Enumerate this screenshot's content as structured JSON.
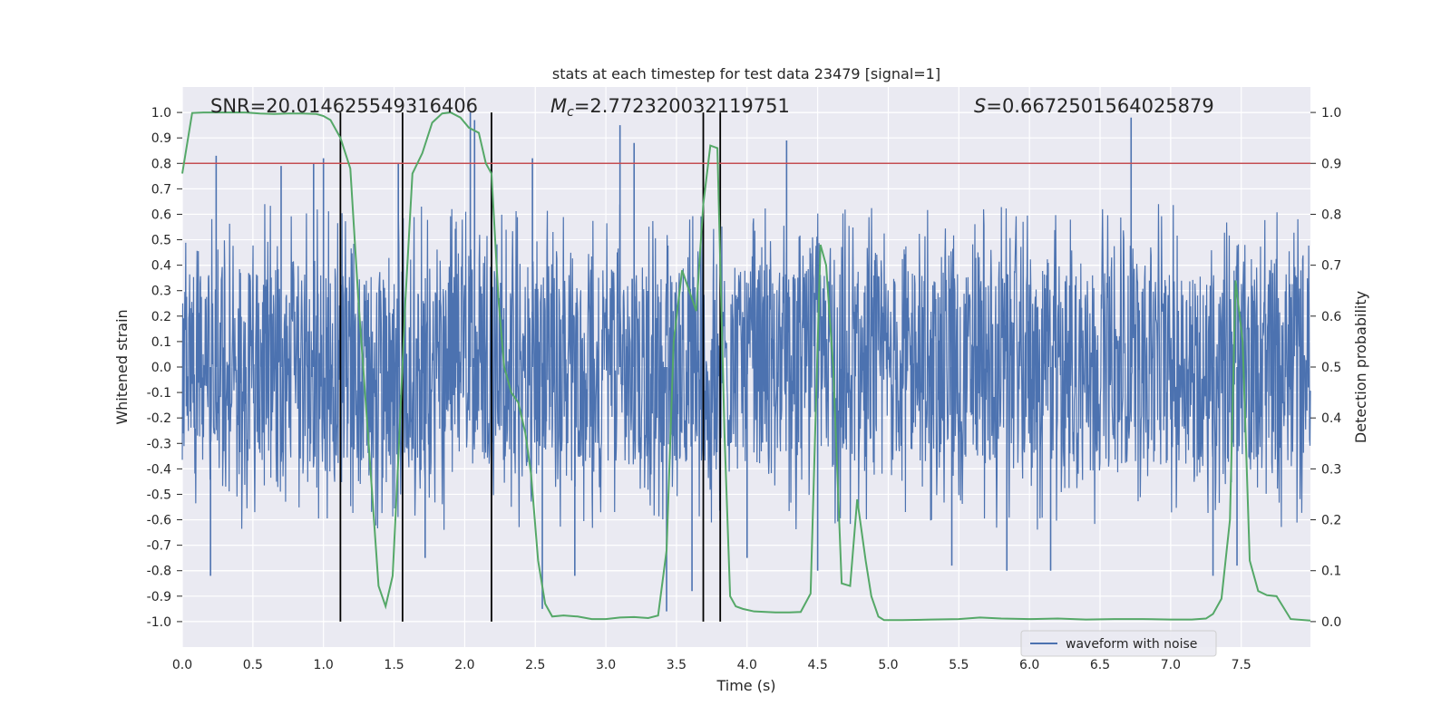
{
  "chart_data": {
    "type": "line",
    "title": "stats at each timestep for test data 23479 [signal=1]",
    "xlabel": "Time (s)",
    "ylabel": "Whitened strain",
    "y2label": "Detection probability",
    "xlim": [
      0.0,
      7.99
    ],
    "ylim": [
      -1.1,
      1.1
    ],
    "y2lim": [
      -0.05,
      1.05
    ],
    "x_ticks": [
      "0.0",
      "0.5",
      "1.0",
      "1.5",
      "2.0",
      "2.5",
      "3.0",
      "3.5",
      "4.0",
      "4.5",
      "5.0",
      "5.5",
      "6.0",
      "6.5",
      "7.0",
      "7.5"
    ],
    "y_ticks": [
      "1.0",
      "0.9",
      "0.8",
      "0.7",
      "0.6",
      "0.5",
      "0.4",
      "0.3",
      "0.2",
      "0.1",
      "0.0",
      "-0.1",
      "-0.2",
      "-0.3",
      "-0.4",
      "-0.5",
      "-0.6",
      "-0.7",
      "-0.8",
      "-0.9",
      "-1.0"
    ],
    "y2_ticks": [
      "1.0",
      "0.9",
      "0.8",
      "0.7",
      "0.6",
      "0.5",
      "0.4",
      "0.3",
      "0.2",
      "0.1",
      "0.0"
    ],
    "grid": true,
    "legend": {
      "placement": "lower-right",
      "entries": [
        "waveform with noise"
      ]
    },
    "annotations": {
      "snr": "SNR=20.014625549316406",
      "mc_symbol": "M",
      "mc_sub": "c",
      "mc_value": "=2.772320032119751",
      "s_symbol": "S",
      "s_value": "=0.6672501564025879"
    },
    "threshold": {
      "axis": "y2",
      "value": 0.9,
      "color": "#c44e52"
    },
    "vlines": [
      1.12,
      1.56,
      2.19,
      3.69,
      3.81
    ],
    "series": [
      {
        "name": "waveform with noise",
        "axis": "y",
        "color": "#4c72b0",
        "envelope": {
          "typical_abs": 0.38,
          "max_abs": 1.0
        },
        "peaks_x": [
          0.2,
          0.24,
          0.7,
          0.93,
          1.0,
          1.53,
          1.72,
          2.04,
          2.07,
          2.19,
          2.48,
          2.55,
          2.78,
          3.1,
          3.2,
          3.43,
          3.61,
          4.0,
          4.28,
          4.5,
          5.45,
          5.84,
          6.15,
          6.72,
          7.3,
          7.47
        ],
        "peaks_y": [
          -0.82,
          0.83,
          0.79,
          0.8,
          0.82,
          0.8,
          -0.75,
          1.0,
          0.97,
          0.82,
          0.82,
          -0.95,
          -0.82,
          0.95,
          0.88,
          -0.96,
          -0.88,
          -0.75,
          0.89,
          -0.8,
          -0.78,
          -0.8,
          -0.8,
          0.98,
          -0.82,
          -0.78
        ]
      },
      {
        "name": "detection probability",
        "axis": "y2",
        "color": "#55a868",
        "x": [
          0.0,
          0.07,
          0.15,
          0.25,
          0.35,
          0.45,
          0.55,
          0.65,
          0.75,
          0.85,
          0.95,
          1.0,
          1.05,
          1.12,
          1.19,
          1.25,
          1.32,
          1.39,
          1.44,
          1.49,
          1.53,
          1.58,
          1.63,
          1.7,
          1.77,
          1.84,
          1.9,
          1.97,
          2.03,
          2.1,
          2.15,
          2.19,
          2.24,
          2.28,
          2.33,
          2.38,
          2.43,
          2.47,
          2.52,
          2.57,
          2.62,
          2.7,
          2.8,
          2.9,
          3.0,
          3.1,
          3.2,
          3.3,
          3.37,
          3.43,
          3.48,
          3.54,
          3.59,
          3.64,
          3.69,
          3.74,
          3.79,
          3.84,
          3.88,
          3.92,
          3.97,
          4.05,
          4.2,
          4.3,
          4.38,
          4.45,
          4.52,
          4.56,
          4.61,
          4.67,
          4.73,
          4.78,
          4.84,
          4.88,
          4.93,
          4.97,
          5.1,
          5.3,
          5.5,
          5.65,
          5.8,
          6.0,
          6.2,
          6.4,
          6.6,
          6.8,
          7.0,
          7.15,
          7.25,
          7.3,
          7.36,
          7.42,
          7.46,
          7.51,
          7.56,
          7.62,
          7.68,
          7.75,
          7.85,
          7.99
        ],
        "y": [
          0.88,
          0.999,
          1.0,
          1.0,
          1.0,
          1.0,
          0.998,
          0.997,
          0.998,
          0.998,
          0.997,
          0.993,
          0.985,
          0.95,
          0.89,
          0.62,
          0.35,
          0.07,
          0.03,
          0.09,
          0.32,
          0.63,
          0.88,
          0.92,
          0.98,
          0.998,
          1.0,
          0.99,
          0.97,
          0.96,
          0.9,
          0.88,
          0.63,
          0.5,
          0.45,
          0.43,
          0.37,
          0.29,
          0.12,
          0.035,
          0.01,
          0.012,
          0.01,
          0.005,
          0.005,
          0.008,
          0.009,
          0.007,
          0.012,
          0.14,
          0.55,
          0.69,
          0.65,
          0.61,
          0.82,
          0.935,
          0.93,
          0.37,
          0.05,
          0.03,
          0.025,
          0.02,
          0.018,
          0.018,
          0.019,
          0.055,
          0.74,
          0.7,
          0.5,
          0.075,
          0.07,
          0.24,
          0.12,
          0.05,
          0.01,
          0.003,
          0.003,
          0.004,
          0.005,
          0.008,
          0.006,
          0.005,
          0.006,
          0.004,
          0.005,
          0.005,
          0.004,
          0.004,
          0.006,
          0.015,
          0.045,
          0.2,
          0.67,
          0.55,
          0.12,
          0.06,
          0.052,
          0.05,
          0.005,
          0.002
        ]
      }
    ]
  }
}
